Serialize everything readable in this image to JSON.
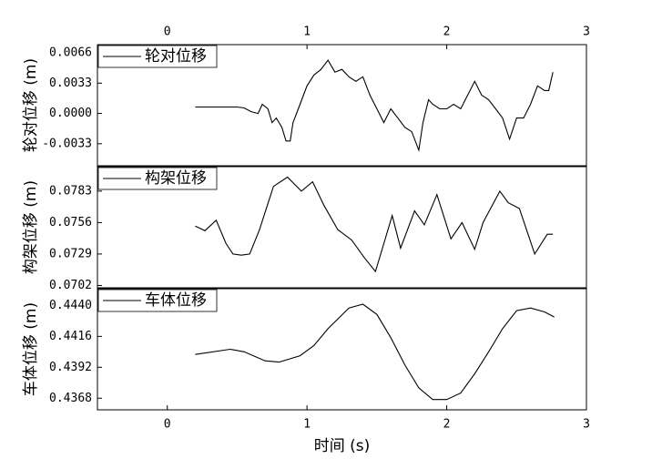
{
  "chart_data": [
    {
      "type": "line",
      "ylabel": "轮对位移 (m)",
      "xtick_side": "top",
      "xlim": [
        -0.5,
        3
      ],
      "xticks": [
        0,
        1,
        2,
        3
      ],
      "ylim": [
        -0.0057,
        0.0075
      ],
      "yticks": [
        0.0066,
        0.0033,
        {
          "value": 0,
          "label": "0.0000"
        },
        -0.0033
      ],
      "x": [
        0.2,
        0.3,
        0.4,
        0.5,
        0.55,
        0.6,
        0.65,
        0.68,
        0.72,
        0.75,
        0.78,
        0.82,
        0.85,
        0.88,
        0.9,
        0.95,
        1.0,
        1.05,
        1.1,
        1.15,
        1.2,
        1.25,
        1.3,
        1.35,
        1.4,
        1.45,
        1.5,
        1.55,
        1.6,
        1.65,
        1.7,
        1.75,
        1.8,
        1.83,
        1.87,
        1.9,
        1.95,
        2.0,
        2.05,
        2.1,
        2.15,
        2.2,
        2.25,
        2.3,
        2.35,
        2.4,
        2.45,
        2.5,
        2.55,
        2.6,
        2.65,
        2.7,
        2.73,
        2.76
      ],
      "series": [
        {
          "name": "轮对位移",
          "color": "#000000",
          "values": [
            0.0007,
            0.0007,
            0.0007,
            0.0007,
            0.0006,
            0.0002,
            0.0,
            0.001,
            0.0005,
            -0.001,
            -0.0005,
            -0.0015,
            -0.003,
            -0.003,
            -0.001,
            0.001,
            0.003,
            0.0042,
            0.0048,
            0.0058,
            0.0045,
            0.0048,
            0.004,
            0.0035,
            0.004,
            0.002,
            0.0005,
            -0.001,
            0.0005,
            -0.0005,
            -0.0015,
            -0.002,
            -0.004,
            -0.001,
            0.0015,
            0.001,
            0.0005,
            0.0005,
            0.001,
            0.0005,
            0.002,
            0.0035,
            0.002,
            0.0015,
            0.0005,
            -0.0005,
            -0.0028,
            -0.0005,
            -0.0005,
            0.001,
            0.003,
            0.0025,
            0.0025,
            0.0045
          ]
        }
      ]
    },
    {
      "type": "line",
      "ylabel": "构架位移 (m)",
      "xlim": [
        -0.5,
        3
      ],
      "ylim": [
        0.07,
        0.0804
      ],
      "yticks": [
        0.0783,
        0.0756,
        0.0729,
        0.0702
      ],
      "x": [
        0.2,
        0.27,
        0.35,
        0.42,
        0.47,
        0.53,
        0.59,
        0.66,
        0.76,
        0.86,
        0.96,
        1.04,
        1.12,
        1.22,
        1.32,
        1.41,
        1.49,
        1.54,
        1.61,
        1.67,
        1.77,
        1.84,
        1.93,
        2.03,
        2.11,
        2.2,
        2.26,
        2.38,
        2.44,
        2.52,
        2.63,
        2.72,
        2.76
      ],
      "series": [
        {
          "name": "构架位移",
          "color": "#000000",
          "values": [
            0.0753,
            0.0749,
            0.0758,
            0.0738,
            0.0729,
            0.0728,
            0.0729,
            0.075,
            0.0787,
            0.0795,
            0.0783,
            0.0791,
            0.0771,
            0.075,
            0.0741,
            0.0726,
            0.0714,
            0.0734,
            0.0762,
            0.0734,
            0.0766,
            0.0754,
            0.078,
            0.0742,
            0.0756,
            0.0733,
            0.0756,
            0.0783,
            0.0773,
            0.0768,
            0.0729,
            0.0746,
            0.0746
          ]
        }
      ]
    },
    {
      "type": "line",
      "ylabel": "车体位移 (m)",
      "xlabel": "时间 (s)",
      "xtick_side": "bottom",
      "xlim": [
        -0.5,
        3
      ],
      "xticks": [
        0,
        1,
        2,
        3
      ],
      "ylim": [
        0.4359,
        0.4453
      ],
      "yticks": [
        {
          "value": 0.444,
          "label": "0.4440"
        },
        0.4416,
        0.4392,
        0.4368
      ],
      "x": [
        0.2,
        0.45,
        0.55,
        0.7,
        0.8,
        0.95,
        1.05,
        1.15,
        1.3,
        1.4,
        1.5,
        1.6,
        1.7,
        1.8,
        1.9,
        2.0,
        2.1,
        2.2,
        2.3,
        2.4,
        2.5,
        2.6,
        2.7,
        2.77
      ],
      "series": [
        {
          "name": "车体位移",
          "color": "#000000",
          "values": [
            0.4402,
            0.4406,
            0.4404,
            0.4397,
            0.4396,
            0.4401,
            0.4409,
            0.4422,
            0.4438,
            0.4441,
            0.4433,
            0.4415,
            0.4394,
            0.4376,
            0.4367,
            0.4367,
            0.4372,
            0.4387,
            0.4404,
            0.4422,
            0.4436,
            0.4438,
            0.4435,
            0.4431
          ]
        }
      ]
    }
  ]
}
